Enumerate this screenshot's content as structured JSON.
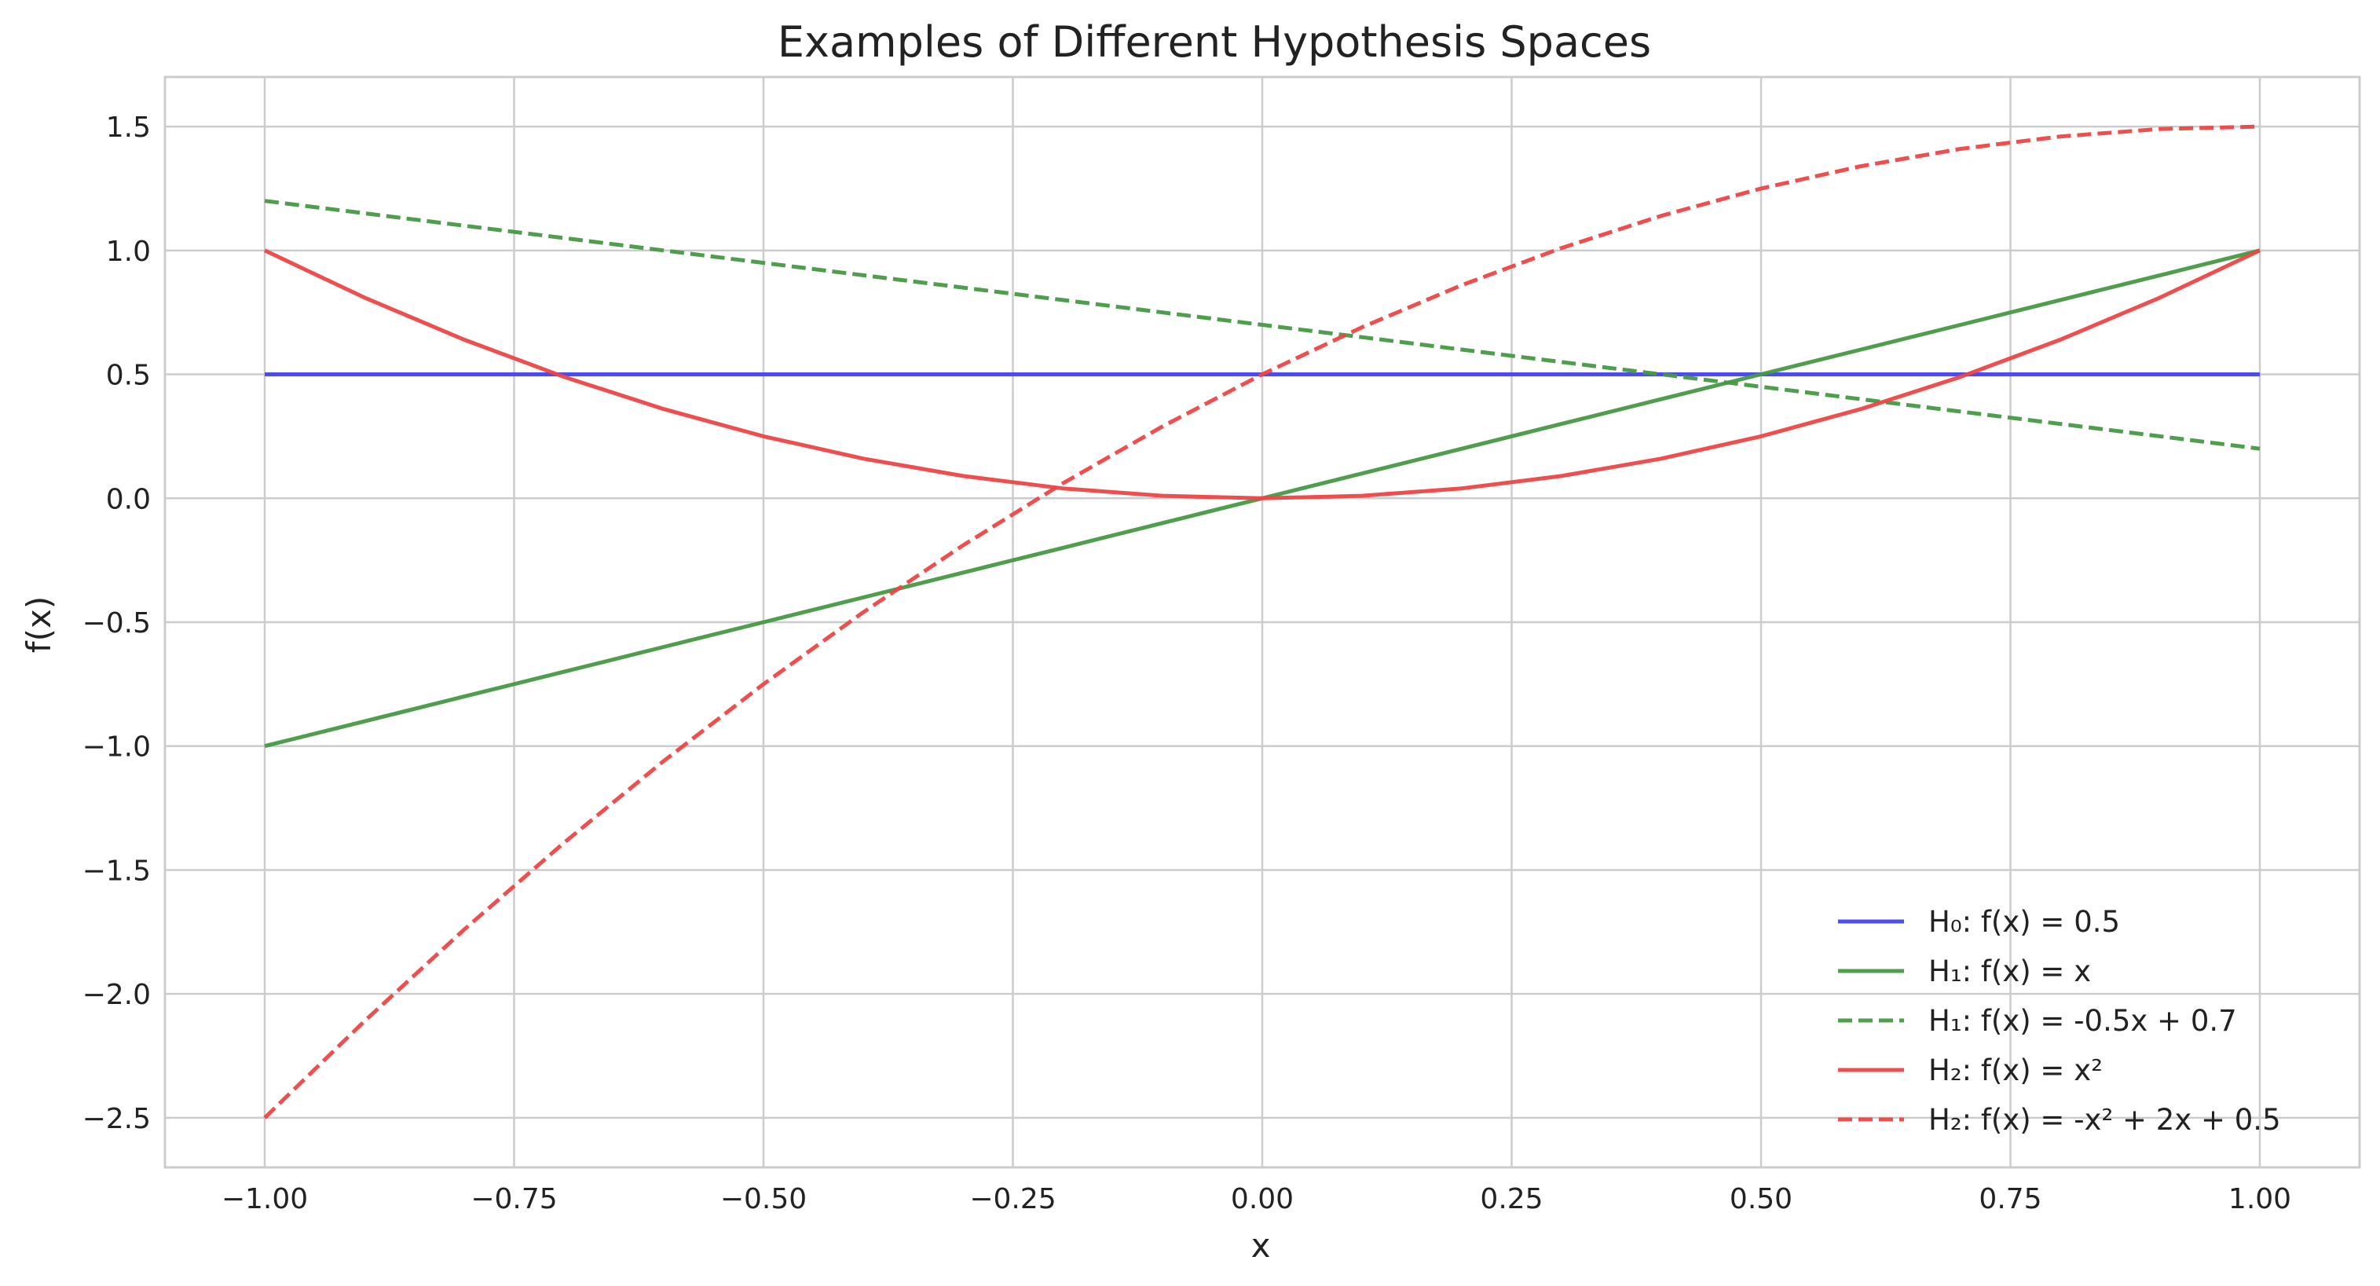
{
  "chart_data": {
    "type": "line",
    "title": "Examples of Different Hypothesis Spaces",
    "xlabel": "x",
    "ylabel": "f(x)",
    "xlim": [
      -1.1,
      1.1
    ],
    "ylim": [
      -2.7,
      1.7
    ],
    "x_ticks": [
      -1.0,
      -0.75,
      -0.5,
      -0.25,
      0.0,
      0.25,
      0.5,
      0.75,
      1.0
    ],
    "x_tick_labels": [
      "−1.00",
      "−0.75",
      "−0.50",
      "−0.25",
      "0.00",
      "0.25",
      "0.50",
      "0.75",
      "1.00"
    ],
    "y_ticks": [
      -2.5,
      -2.0,
      -1.5,
      -1.0,
      -0.5,
      0.0,
      0.5,
      1.0,
      1.5
    ],
    "y_tick_labels": [
      "−2.5",
      "−2.0",
      "−1.5",
      "−1.0",
      "−0.5",
      "0.0",
      "0.5",
      "1.0",
      "1.5"
    ],
    "grid": true,
    "legend_position": "bottom-right",
    "x": [
      -1.0,
      -0.9,
      -0.8,
      -0.7,
      -0.6,
      -0.5,
      -0.4,
      -0.3,
      -0.2,
      -0.1,
      0.0,
      0.1,
      0.2,
      0.3,
      0.4,
      0.5,
      0.6,
      0.7,
      0.8,
      0.9,
      1.0
    ],
    "series": [
      {
        "name": "H₀: f(x) = 0.5",
        "color": "#4444ee",
        "dash": "solid",
        "values": [
          0.5,
          0.5,
          0.5,
          0.5,
          0.5,
          0.5,
          0.5,
          0.5,
          0.5,
          0.5,
          0.5,
          0.5,
          0.5,
          0.5,
          0.5,
          0.5,
          0.5,
          0.5,
          0.5,
          0.5,
          0.5
        ]
      },
      {
        "name": "H₁: f(x) = x",
        "color": "#449944",
        "dash": "solid",
        "values": [
          -1.0,
          -0.9,
          -0.8,
          -0.7,
          -0.6,
          -0.5,
          -0.4,
          -0.3,
          -0.2,
          -0.1,
          0.0,
          0.1,
          0.2,
          0.3,
          0.4,
          0.5,
          0.6,
          0.7,
          0.8,
          0.9,
          1.0
        ]
      },
      {
        "name": "H₁: f(x) = -0.5x + 0.7",
        "color": "#449944",
        "dash": "dashed",
        "values": [
          1.2,
          1.15,
          1.1,
          1.05,
          1.0,
          0.95,
          0.9,
          0.85,
          0.8,
          0.75,
          0.7,
          0.65,
          0.6,
          0.55,
          0.5,
          0.45,
          0.4,
          0.35,
          0.3,
          0.25,
          0.2
        ]
      },
      {
        "name": "H₂: f(x) = x²",
        "color": "#ee4444",
        "dash": "solid",
        "values": [
          1.0,
          0.81,
          0.64,
          0.49,
          0.36,
          0.25,
          0.16,
          0.09,
          0.04,
          0.01,
          0.0,
          0.01,
          0.04,
          0.09,
          0.16,
          0.25,
          0.36,
          0.49,
          0.64,
          0.81,
          1.0
        ]
      },
      {
        "name": "H₂: f(x) = -x² + 2x + 0.5",
        "color": "#ee4444",
        "dash": "dashed",
        "values": [
          -2.5,
          -2.11,
          -1.74,
          -1.39,
          -1.06,
          -0.75,
          -0.46,
          -0.19,
          0.06,
          0.29,
          0.5,
          0.69,
          0.86,
          1.01,
          1.14,
          1.25,
          1.34,
          1.41,
          1.46,
          1.49,
          1.5
        ]
      }
    ]
  }
}
